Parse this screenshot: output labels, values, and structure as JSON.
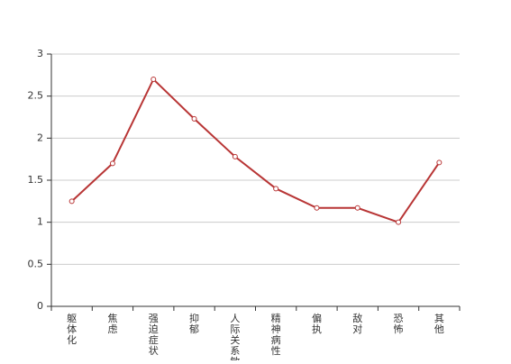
{
  "chart_data": {
    "type": "line",
    "categories": [
      "躯体化",
      "焦虑",
      "强迫症状",
      "抑郁",
      "人际关系敏感",
      "精神病性",
      "偏执",
      "敌对",
      "恐怖",
      "其他"
    ],
    "series": [
      {
        "color": "#b83535",
        "values": [
          1.25,
          1.7,
          2.7,
          2.23,
          1.78,
          1.4,
          1.17,
          1.17,
          1.0,
          1.71
        ]
      }
    ],
    "ylim": [
      0,
      3
    ],
    "yticks": [
      0,
      0.5,
      1,
      1.5,
      2,
      2.5,
      3
    ],
    "grid": true
  }
}
